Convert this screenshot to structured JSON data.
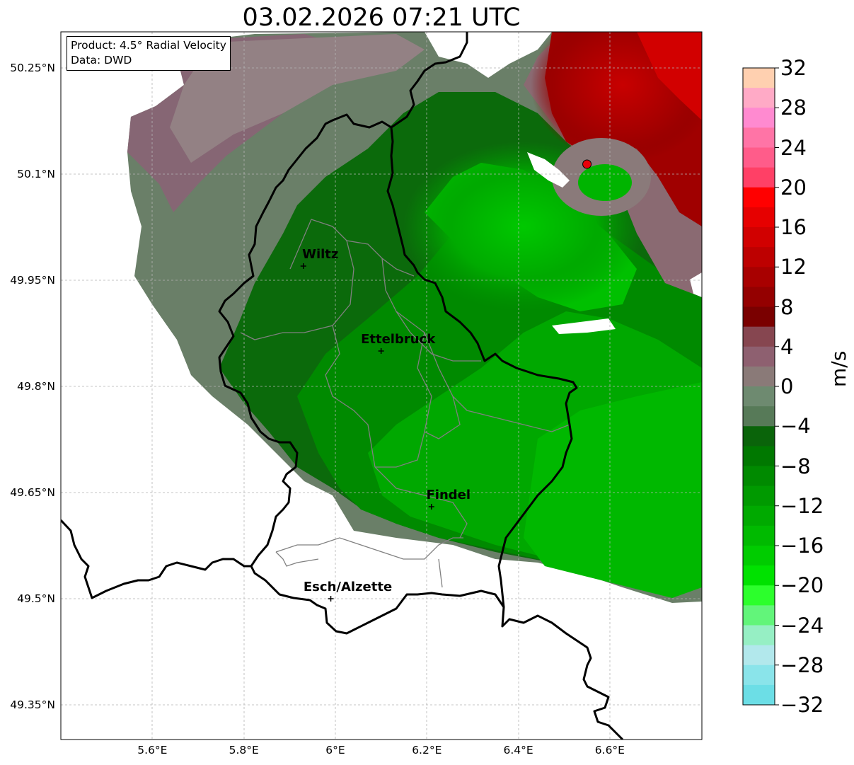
{
  "title": "03.02.2026 07:21 UTC",
  "info": {
    "product": "Product: 4.5° Radial Velocity",
    "source": "Data: DWD"
  },
  "axes": {
    "lat_ticks": [
      "50.25°N",
      "50.1°N",
      "49.95°N",
      "49.8°N",
      "49.65°N",
      "49.5°N",
      "49.35°N"
    ],
    "lon_ticks": [
      "5.6°E",
      "5.8°E",
      "6°E",
      "6.2°E",
      "6.4°E",
      "6.6°E"
    ],
    "grid": true
  },
  "cities": [
    {
      "name": "Wiltz",
      "lon": 5.93,
      "lat": 49.97
    },
    {
      "name": "Ettelbruck",
      "lon": 6.1,
      "lat": 49.85
    },
    {
      "name": "Findel",
      "lon": 6.21,
      "lat": 49.63
    },
    {
      "name": "Esch/Alzette",
      "lon": 5.99,
      "lat": 49.5
    }
  ],
  "radar_site": {
    "lon": 6.55,
    "lat": 50.11,
    "color": "#e8000b"
  },
  "colorbar": {
    "unit": "m/s",
    "ticks": [
      "32",
      "28",
      "24",
      "20",
      "16",
      "12",
      "8",
      "4",
      "0",
      "−4",
      "−8",
      "−12",
      "−16",
      "−20",
      "−24",
      "−28",
      "−32"
    ],
    "colors": [
      "#ffd0b0",
      "#ffaac6",
      "#ff8ad0",
      "#ff74a6",
      "#ff5c8a",
      "#ff4066",
      "#ff0000",
      "#e60000",
      "#d10000",
      "#bd0000",
      "#a80000",
      "#940000",
      "#7a0000",
      "#864650",
      "#8e6070",
      "#8a7a78",
      "#6e8a70",
      "#577a58",
      "#0a640a",
      "#007800",
      "#008a00",
      "#009a00",
      "#00aa00",
      "#00ba00",
      "#00cc00",
      "#00e200",
      "#2cff2c",
      "#62f57a",
      "#96efc4",
      "#b2e8ec",
      "#8ae4ea",
      "#6cdee6"
    ]
  },
  "palette": {
    "border_national": "#000000",
    "border_canton": "#808080",
    "grid": "#b4b4b4"
  }
}
